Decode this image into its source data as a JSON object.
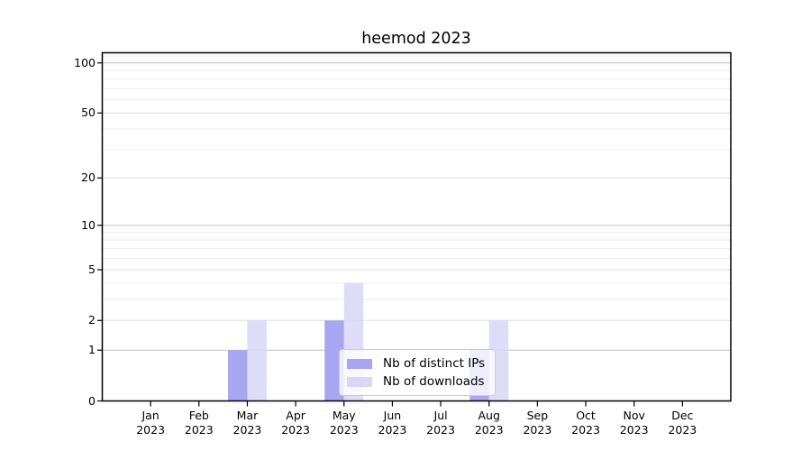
{
  "chart_data": {
    "type": "bar",
    "title": "heemod 2023",
    "year_label": "2023",
    "categories": [
      "Jan",
      "Feb",
      "Mar",
      "Apr",
      "May",
      "Jun",
      "Jul",
      "Aug",
      "Sep",
      "Oct",
      "Nov",
      "Dec"
    ],
    "series": [
      {
        "name": "Nb of distinct IPs",
        "color": "#a6a6f1",
        "opacity": 1,
        "values": [
          0,
          0,
          1,
          0,
          2,
          0,
          0,
          1,
          0,
          0,
          0,
          0
        ]
      },
      {
        "name": "Nb of downloads",
        "color": "#d7d7f7",
        "opacity": 0.85,
        "values": [
          0,
          0,
          2,
          0,
          4,
          0,
          0,
          2,
          0,
          0,
          0,
          0
        ]
      }
    ],
    "y_axis": {
      "scale": "log1p",
      "ticks": [
        0,
        1,
        2,
        5,
        10,
        20,
        50,
        100
      ],
      "minor_ticks": [
        3,
        4,
        6,
        7,
        8,
        9,
        30,
        40,
        60,
        70,
        80,
        90,
        110
      ],
      "max": 115
    },
    "x_axis": {
      "label_line2": "2023"
    },
    "legend": {
      "position": "bottom-center"
    },
    "grid": true,
    "colors": {
      "grid_major": "#c6c6c6",
      "grid_mid": "#dddddd",
      "grid_minor": "#eeeeee",
      "axis": "#000000",
      "background": "#ffffff"
    }
  }
}
